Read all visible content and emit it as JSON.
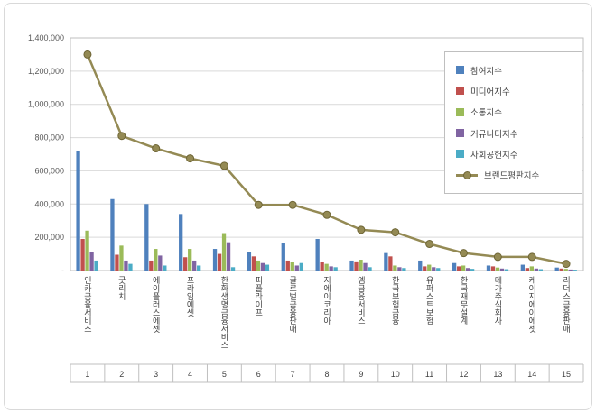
{
  "chart_data": {
    "type": "bar",
    "title": "",
    "categories": [
      "인카금융서비스",
      "굿리치",
      "에이플러스에셋",
      "프라임에셋",
      "한화생명금융서비스",
      "피플라이프",
      "글로벌금융판매",
      "지에이코리아",
      "엠금융서비스",
      "한국보험금융",
      "유퍼스트보험",
      "한국재무설계",
      "메가주식회사",
      "케이지에이에셋",
      "리더스금융판매"
    ],
    "category_numbers": [
      "1",
      "2",
      "3",
      "4",
      "5",
      "6",
      "7",
      "8",
      "9",
      "10",
      "11",
      "12",
      "13",
      "14",
      "15"
    ],
    "series": [
      {
        "name": "참여지수",
        "kind": "bar",
        "color": "#4F81BD",
        "values": [
          720000,
          430000,
          400000,
          340000,
          130000,
          110000,
          165000,
          190000,
          60000,
          105000,
          60000,
          45000,
          30000,
          35000,
          18000
        ]
      },
      {
        "name": "미디어지수",
        "kind": "bar",
        "color": "#C0504D",
        "values": [
          190000,
          95000,
          60000,
          80000,
          100000,
          85000,
          60000,
          50000,
          55000,
          85000,
          25000,
          25000,
          25000,
          15000,
          12000
        ]
      },
      {
        "name": "소통지수",
        "kind": "bar",
        "color": "#9BBB59",
        "values": [
          240000,
          150000,
          130000,
          130000,
          225000,
          60000,
          50000,
          40000,
          65000,
          30000,
          35000,
          30000,
          18000,
          25000,
          10000
        ]
      },
      {
        "name": "커뮤니티지수",
        "kind": "bar",
        "color": "#8064A2",
        "values": [
          110000,
          60000,
          90000,
          60000,
          170000,
          45000,
          30000,
          25000,
          45000,
          20000,
          20000,
          15000,
          12000,
          12000,
          6000
        ]
      },
      {
        "name": "사회공헌지수",
        "kind": "bar",
        "color": "#4BACC6",
        "values": [
          60000,
          40000,
          30000,
          30000,
          20000,
          35000,
          45000,
          20000,
          20000,
          15000,
          15000,
          10000,
          8000,
          8000,
          5000
        ]
      },
      {
        "name": "브랜드평판지수",
        "kind": "line",
        "color": "#948A54",
        "values": [
          1300000,
          810000,
          735000,
          675000,
          630000,
          395000,
          395000,
          335000,
          245000,
          230000,
          160000,
          105000,
          82000,
          82000,
          40000
        ]
      }
    ],
    "y_axis": {
      "min": 0,
      "max": 1400000,
      "step": 200000,
      "tick_labels": [
        "-",
        "200,000",
        "400,000",
        "600,000",
        "800,000",
        "1,000,000",
        "1,200,000",
        "1,400,000"
      ]
    },
    "grid": true,
    "legend_position": "right-top"
  }
}
